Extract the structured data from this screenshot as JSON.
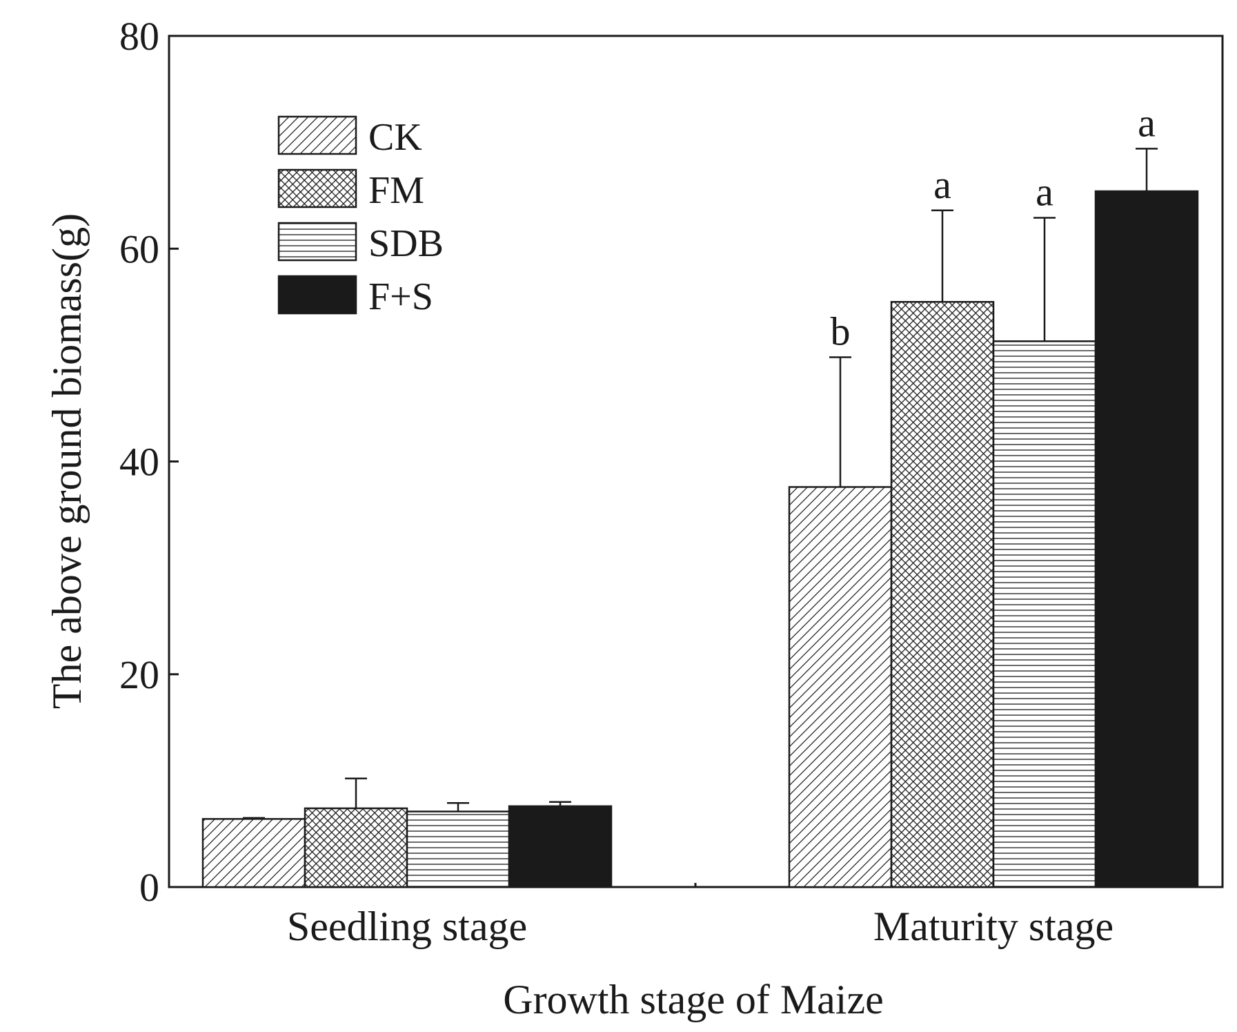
{
  "chart_data": {
    "type": "bar",
    "title": "",
    "xlabel": "Growth stage of Maize",
    "ylabel": "The above ground biomass(g)",
    "ylim": [
      0,
      80
    ],
    "yticks": [
      0,
      20,
      40,
      60,
      80
    ],
    "grid": false,
    "legend_position": "top-left",
    "categories": [
      "Seedling stage",
      "Maturity stage"
    ],
    "series": [
      {
        "name": "CK",
        "pattern": "diagonal",
        "values": [
          6.4,
          37.6
        ],
        "errors": [
          0.1,
          12.2
        ],
        "letters": [
          "",
          "b"
        ]
      },
      {
        "name": "FM",
        "pattern": "crosshatch",
        "values": [
          7.4,
          55.0
        ],
        "errors": [
          2.8,
          8.6
        ],
        "letters": [
          "",
          "a"
        ]
      },
      {
        "name": "SDB",
        "pattern": "horizontal",
        "values": [
          7.1,
          51.3
        ],
        "errors": [
          0.8,
          11.6
        ],
        "letters": [
          "",
          "a"
        ]
      },
      {
        "name": "F+S",
        "pattern": "solid",
        "values": [
          7.6,
          65.4
        ],
        "errors": [
          0.4,
          4.0
        ],
        "letters": [
          "",
          "a"
        ]
      }
    ]
  },
  "colors": {
    "ink": "#1a1a1a",
    "background": "#ffffff"
  }
}
